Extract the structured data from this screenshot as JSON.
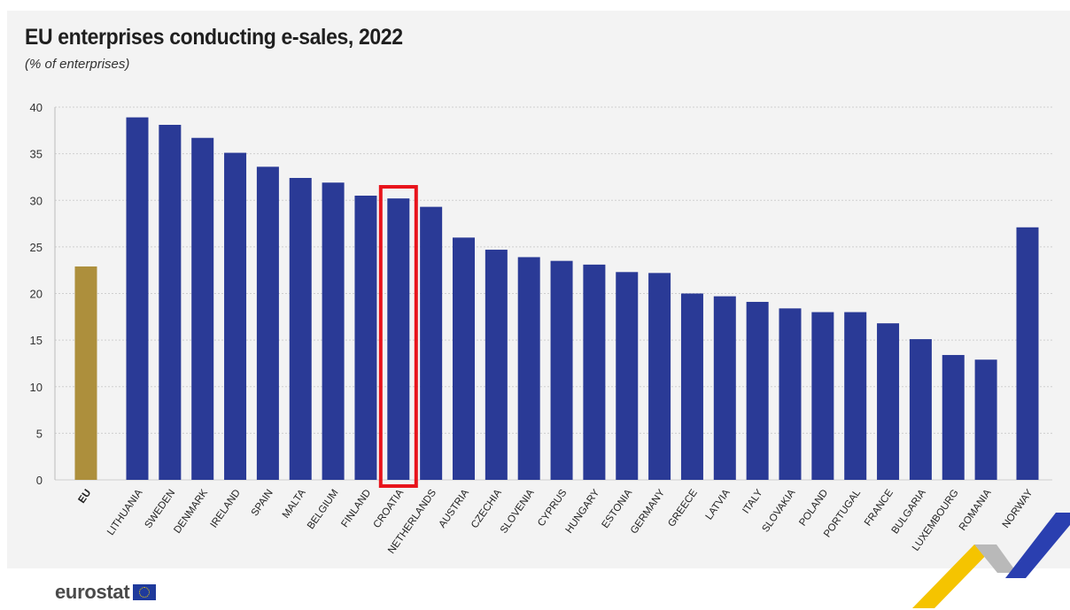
{
  "header": {
    "title": "EU enterprises conducting e-sales, 2022",
    "subtitle": "(% of enterprises)"
  },
  "footer": {
    "logo_text": "eurostat"
  },
  "colors": {
    "eu_bar": "#ad8f3c",
    "country_bar": "#2a3a96",
    "highlight_box": "#e8141c",
    "grid": "#cfcfcf",
    "axis_text": "#333333"
  },
  "chart_data": {
    "type": "bar",
    "title": "EU enterprises conducting e-sales, 2022",
    "subtitle": "(% of enterprises)",
    "ylim": [
      0,
      40
    ],
    "yticks": [
      0,
      5,
      10,
      15,
      20,
      25,
      30,
      35,
      40
    ],
    "grid": true,
    "highlighted_category": "CROATIA",
    "categories": [
      "EU",
      "LITHUANIA",
      "SWEDEN",
      "DENMARK",
      "IRELAND",
      "SPAIN",
      "MALTA",
      "BELGIUM",
      "FINLAND",
      "CROATIA",
      "NETHERLANDS",
      "AUSTRIA",
      "CZECHIA",
      "SLOVENIA",
      "CYPRUS",
      "HUNGARY",
      "ESTONIA",
      "GERMANY",
      "GREECE",
      "LATVIA",
      "ITALY",
      "SLOVAKIA",
      "POLAND",
      "PORTUGAL",
      "FRANCE",
      "BULGARIA",
      "LUXEMBOURG",
      "ROMANIA",
      "NORWAY"
    ],
    "values": [
      22.9,
      38.9,
      38.1,
      36.7,
      35.1,
      33.6,
      32.4,
      31.9,
      30.5,
      30.2,
      29.3,
      26.0,
      24.7,
      23.9,
      23.5,
      23.1,
      22.3,
      22.2,
      20.0,
      19.7,
      19.1,
      18.4,
      18.0,
      18.0,
      16.8,
      15.1,
      13.4,
      12.9,
      27.1
    ]
  }
}
